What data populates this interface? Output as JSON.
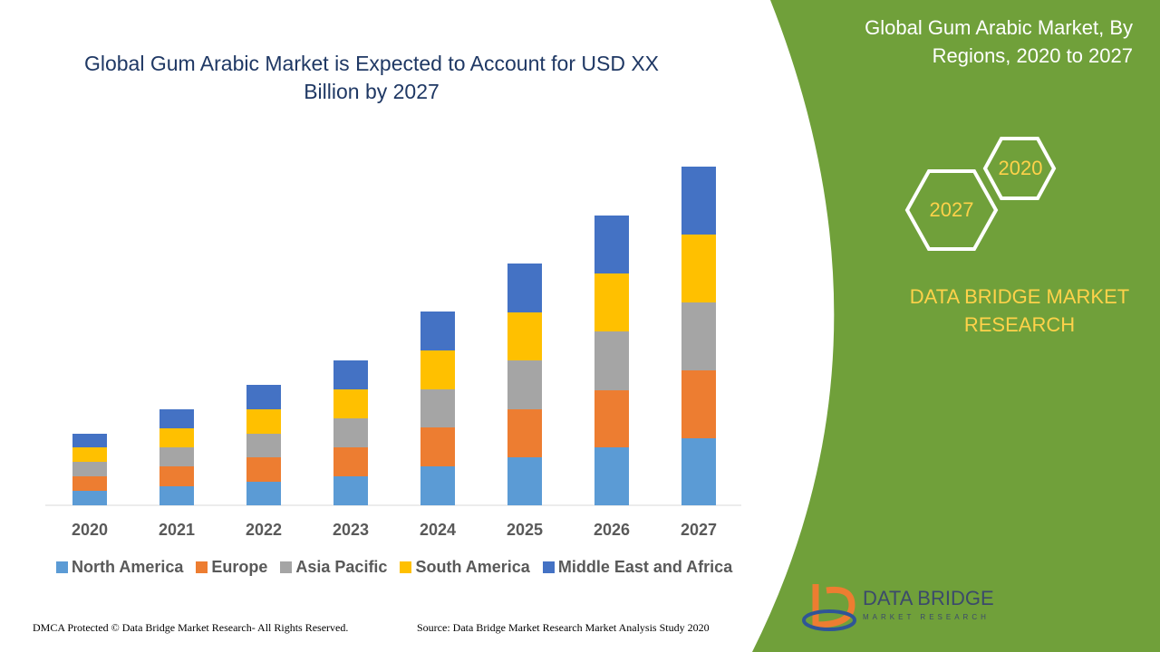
{
  "chart_data": {
    "type": "bar",
    "stacked": true,
    "title": "Global Gum Arabic Market is Expected to Account for USD XX Billion by 2027",
    "categories": [
      "2020",
      "2021",
      "2022",
      "2023",
      "2024",
      "2025",
      "2026",
      "2027"
    ],
    "series": [
      {
        "name": "North America",
        "color": "#5b9bd5",
        "values": [
          16,
          21,
          26,
          32,
          43,
          53,
          64,
          74
        ]
      },
      {
        "name": "Europe",
        "color": "#ed7d31",
        "values": [
          16,
          22,
          27,
          32,
          43,
          53,
          63,
          75
        ]
      },
      {
        "name": "Asia Pacific",
        "color": "#a5a5a5",
        "values": [
          16,
          21,
          26,
          32,
          42,
          54,
          65,
          75
        ]
      },
      {
        "name": "South America",
        "color": "#ffc000",
        "values": [
          16,
          21,
          27,
          32,
          43,
          53,
          64,
          75
        ]
      },
      {
        "name": "Middle East and Africa",
        "color": "#4472c4",
        "values": [
          15,
          21,
          27,
          32,
          43,
          54,
          64,
          75
        ]
      }
    ],
    "ylim": [
      0,
      400
    ]
  },
  "panel": {
    "title": "Global Gum Arabic Market, By Regions, 2020 to 2027",
    "hexagons": [
      "2020",
      "2027"
    ],
    "brand": "DATA BRIDGE MARKET RESEARCH"
  },
  "logo": {
    "name": "DATA BRIDGE",
    "tagline": "MARKET RESEARCH"
  },
  "footer": {
    "left": "DMCA Protected © Data Bridge Market Research- All Rights Reserved.",
    "right": "Source: Data Bridge Market Research Market Analysis Study 2020"
  }
}
